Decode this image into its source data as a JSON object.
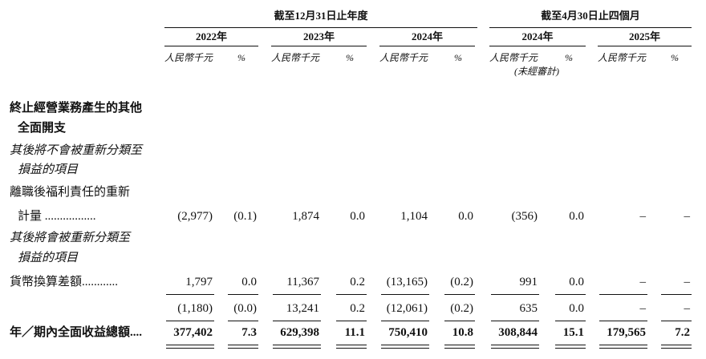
{
  "header": {
    "group_1": "截至12月31日止年度",
    "group_2": "截至4月30日止四個月",
    "years": [
      "2022年",
      "2023年",
      "2024年",
      "2024年",
      "2025年"
    ],
    "unit": "人民幣千元",
    "pct": "%",
    "unaudited": "(未經審計)"
  },
  "rows": [
    {
      "label": [
        "終止經營業務產生的其他",
        "全面開支"
      ],
      "style": "bold"
    },
    {
      "label": [
        "其後將不會被重新分類至",
        "損益的項目"
      ],
      "style": "italic"
    },
    {
      "label": [
        "離職後福利責任的重新",
        "計量 ................."
      ],
      "style": "normal",
      "values": [
        "(2,977)",
        "(0.1)",
        "1,874",
        "0.0",
        "1,104",
        "0.0",
        "(356)",
        "0.0",
        "–",
        "–"
      ]
    },
    {
      "label": [
        "其後將會被重新分類至",
        "損益的項目"
      ],
      "style": "italic"
    },
    {
      "label": [
        "貨幣換算差額............"
      ],
      "style": "normal",
      "values": [
        "1,797",
        "0.0",
        "11,367",
        "0.2",
        "(13,165)",
        "(0.2)",
        "991",
        "0.0",
        "–",
        "–"
      ]
    },
    {
      "label": [],
      "style": "normal",
      "values": [
        "(1,180)",
        "(0.0)",
        "13,241",
        "0.2",
        "(12,061)",
        "(0.2)",
        "635",
        "0.0",
        "–",
        "–"
      ]
    },
    {
      "label": [
        "年／期內全面收益總額...."
      ],
      "style": "bold",
      "values": [
        "377,402",
        "7.3",
        "629,398",
        "11.1",
        "750,410",
        "10.8",
        "308,844",
        "15.1",
        "179,565",
        "7.2"
      ]
    }
  ]
}
